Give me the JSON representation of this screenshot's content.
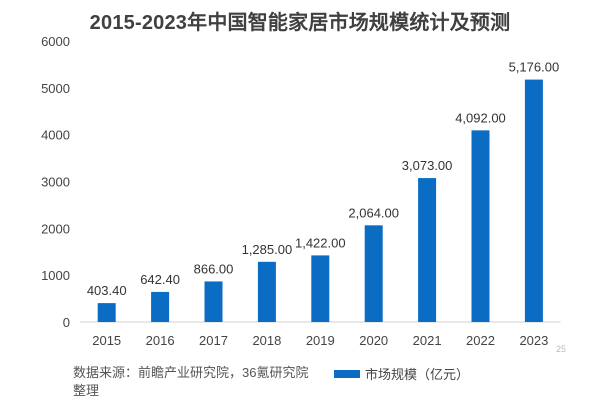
{
  "chart_data": {
    "type": "bar",
    "title": "2015-2023年中国智能家居市场规模统计及预测",
    "categories": [
      "2015",
      "2016",
      "2017",
      "2018",
      "2019",
      "2020",
      "2021",
      "2022",
      "2023"
    ],
    "series": [
      {
        "name": "市场规模（亿元）",
        "values": [
          403.4,
          642.4,
          866.0,
          1285.0,
          1422.0,
          2064.0,
          3073.0,
          4092.0,
          5176.0
        ]
      }
    ],
    "data_labels": [
      "403.40",
      "642.40",
      "866.00",
      "1,285.00",
      "1,422.00",
      "2,064.00",
      "3,073.00",
      "4,092.00",
      "5,176.00"
    ],
    "xlabel": "",
    "ylabel": "",
    "ylim": [
      0,
      6000
    ],
    "yticks": [
      "0",
      "1000",
      "2000",
      "3000",
      "4000",
      "5000",
      "6000"
    ],
    "grid": false,
    "legend_position": "bottom",
    "bar_color": "#0b6cc4"
  },
  "source": "数据来源：前瞻产业研究院，36氪研究院整理",
  "page_number": "25"
}
